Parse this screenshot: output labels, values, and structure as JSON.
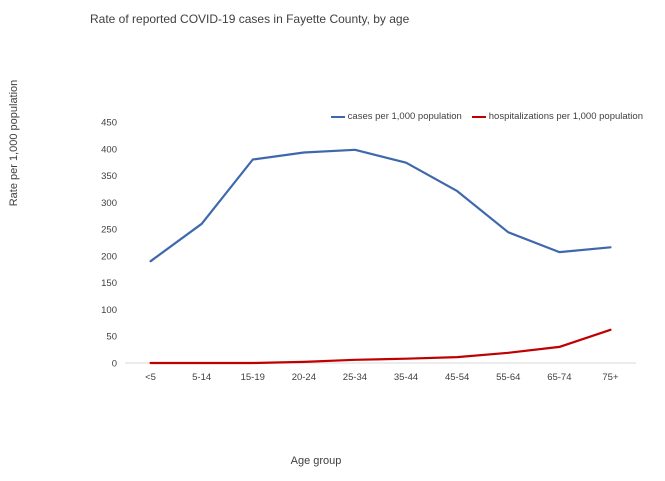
{
  "chart_data": {
    "type": "line",
    "title": "Rate of reported COVID-19 cases in Fayette County, by age",
    "xlabel": "Age group",
    "ylabel": "Rate per 1,000 population",
    "ylim": [
      0,
      450
    ],
    "yticks": [
      0,
      50,
      100,
      150,
      200,
      250,
      300,
      350,
      400,
      450
    ],
    "grid": false,
    "legend_position": "top-right",
    "categories": [
      "<5",
      "5-14",
      "15-19",
      "20-24",
      "25-34",
      "35-44",
      "45-54",
      "55-64",
      "65-74",
      "75+"
    ],
    "series": [
      {
        "name": "cases per 1,000 population",
        "color": "#3f68ac",
        "values": [
          190,
          260,
          380,
          393,
          398,
          374,
          321,
          244,
          207,
          216
        ]
      },
      {
        "name": "hospitalizations per 1,000 population",
        "color": "#c00000",
        "values": [
          0,
          0,
          0,
          2,
          6,
          8,
          11,
          19,
          30,
          62
        ]
      }
    ]
  }
}
